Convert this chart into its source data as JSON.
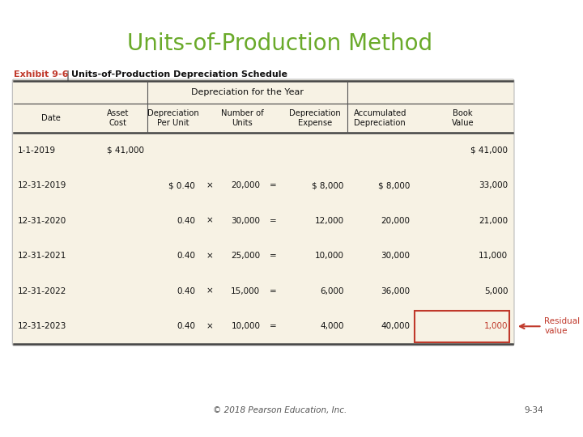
{
  "title": "Units-of-Production Method",
  "title_color": "#6aaa2a",
  "exhibit_label": "Exhibit 9-6",
  "exhibit_label_color": "#c0392b",
  "exhibit_title": "Units-of-Production Depreciation Schedule",
  "background_color": "#ffffff",
  "table_bg": "#f7f2e4",
  "footer_text": "© 2018 Pearson Education, Inc.",
  "footer_right": "9-34",
  "col_header_group": "Depreciation for the Year",
  "rows": [
    [
      "1-1-2019",
      "$ 41,000",
      "",
      "",
      "",
      "",
      "",
      "",
      "$ 41,000"
    ],
    [
      "12-31-2019",
      "",
      "$ 0.40",
      "×",
      "20,000",
      "=",
      "$ 8,000",
      "$ 8,000",
      "33,000"
    ],
    [
      "12-31-2020",
      "",
      "0.40",
      "×",
      "30,000",
      "=",
      "12,000",
      "20,000",
      "21,000"
    ],
    [
      "12-31-2021",
      "",
      "0.40",
      "×",
      "25,000",
      "=",
      "10,000",
      "30,000",
      "11,000"
    ],
    [
      "12-31-2022",
      "",
      "0.40",
      "×",
      "15,000",
      "=",
      "6,000",
      "36,000",
      "5,000"
    ],
    [
      "12-31-2023",
      "",
      "0.40",
      "×",
      "10,000",
      "=",
      "4,000",
      "40,000",
      "1,000"
    ]
  ],
  "residual_row": 5,
  "residual_col": 8,
  "residual_text": "Residual\nvalue",
  "residual_color": "#c0392b",
  "line_color": "#555555",
  "thick_lw": 1.8,
  "thin_lw": 0.8
}
